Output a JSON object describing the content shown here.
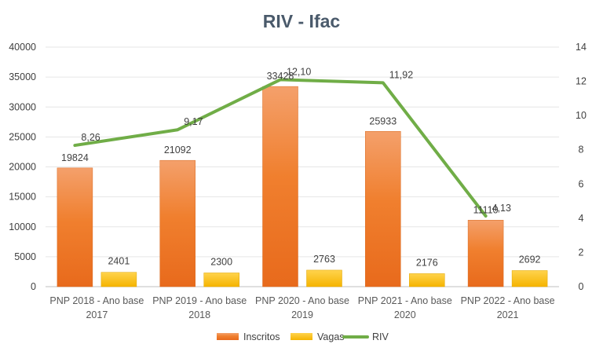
{
  "chart_data": {
    "type": "bar",
    "title": "RIV  - Ifac",
    "categories": [
      "PNP 2018 - Ano base 2017",
      "PNP 2019 - Ano base 2018",
      "PNP 2020 - Ano base 2019",
      "PNP 2021 - Ano base 2020",
      "PNP 2022 - Ano base 2021"
    ],
    "category_lines": [
      [
        "PNP 2018 - Ano base",
        "2017"
      ],
      [
        "PNP 2019 - Ano base",
        "2018"
      ],
      [
        "PNP 2020 - Ano base",
        "2019"
      ],
      [
        "PNP 2021 - Ano base",
        "2020"
      ],
      [
        "PNP 2022 - Ano base",
        "2021"
      ]
    ],
    "series": [
      {
        "name": "Inscritos",
        "type": "bar",
        "axis": "left",
        "values": [
          19824,
          21092,
          33428,
          25933,
          11110
        ],
        "labels": [
          "19824",
          "21092",
          "33428",
          "25933",
          "11110"
        ],
        "color": "#ED7D31"
      },
      {
        "name": "Vagas",
        "type": "bar",
        "axis": "left",
        "values": [
          2401,
          2300,
          2763,
          2176,
          2692
        ],
        "labels": [
          "2401",
          "2300",
          "2763",
          "2176",
          "2692"
        ],
        "color": "#FFC000"
      },
      {
        "name": "RIV",
        "type": "line",
        "axis": "right",
        "values": [
          8.26,
          9.17,
          12.1,
          11.92,
          4.13
        ],
        "labels": [
          "8,26",
          "9,17",
          "12,10",
          "11,92",
          "4,13"
        ],
        "color": "#70AD47"
      }
    ],
    "y_left": {
      "ylim": [
        0,
        40000
      ],
      "ticks": [
        "0",
        "5000",
        "10000",
        "15000",
        "20000",
        "25000",
        "30000",
        "35000",
        "40000"
      ]
    },
    "y_right": {
      "ylim": [
        0,
        14
      ],
      "ticks": [
        "0",
        "2",
        "4",
        "6",
        "8",
        "10",
        "12",
        "14"
      ]
    },
    "grid": true,
    "legend_position": "bottom"
  }
}
